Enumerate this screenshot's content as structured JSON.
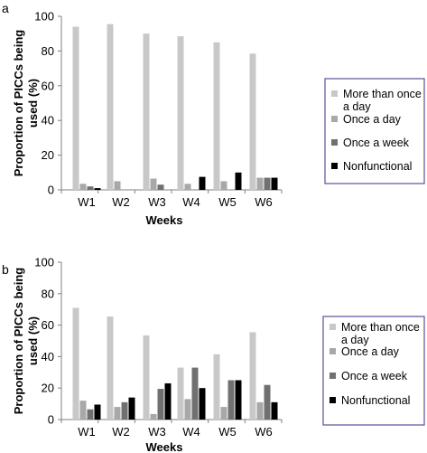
{
  "chart_data": [
    {
      "panel_label": "a",
      "type": "bar",
      "categories": [
        "W1",
        "W2",
        "W3",
        "W4",
        "W5",
        "W6"
      ],
      "series": [
        {
          "name": "More than once a day",
          "color": "#c8c8c8",
          "values": [
            94,
            95.5,
            90,
            88.5,
            85,
            78.5
          ]
        },
        {
          "name": "Once a day",
          "color": "#a8a8a8",
          "values": [
            3.5,
            5,
            6.5,
            3.5,
            5,
            7
          ]
        },
        {
          "name": "Once a week",
          "color": "#707070",
          "values": [
            2,
            0,
            3,
            0,
            0,
            7
          ]
        },
        {
          "name": "Nonfunctional",
          "color": "#000000",
          "values": [
            1,
            0,
            0,
            7.5,
            10,
            7
          ]
        }
      ],
      "xlabel": "Weeks",
      "ylabel": "Proportion of PICCs being used (%)",
      "ylim": [
        0,
        100
      ],
      "yticks": [
        0,
        20,
        40,
        60,
        80,
        100
      ],
      "legend_position": "right",
      "grid": false
    },
    {
      "panel_label": "b",
      "type": "bar",
      "categories": [
        "W1",
        "W2",
        "W3",
        "W4",
        "W5",
        "W6"
      ],
      "series": [
        {
          "name": "More than once a day",
          "color": "#c8c8c8",
          "values": [
            71,
            65.5,
            53.5,
            33,
            41.5,
            55.5
          ]
        },
        {
          "name": "Once a day",
          "color": "#a8a8a8",
          "values": [
            12,
            8,
            3.5,
            13,
            8,
            11
          ]
        },
        {
          "name": "Once a week",
          "color": "#707070",
          "values": [
            6.5,
            11,
            19.5,
            33,
            25,
            22
          ]
        },
        {
          "name": "Nonfunctional",
          "color": "#000000",
          "values": [
            9.5,
            14,
            23,
            20,
            25,
            11
          ]
        }
      ],
      "xlabel": "Weeks",
      "ylabel": "Proportion of PICCs being used (%)",
      "ylim": [
        0,
        100
      ],
      "yticks": [
        0,
        20,
        40,
        60,
        80,
        100
      ],
      "legend_position": "right",
      "grid": false
    }
  ],
  "colors": {
    "legend_border": "#5a4f9e",
    "axis": "#808080"
  }
}
